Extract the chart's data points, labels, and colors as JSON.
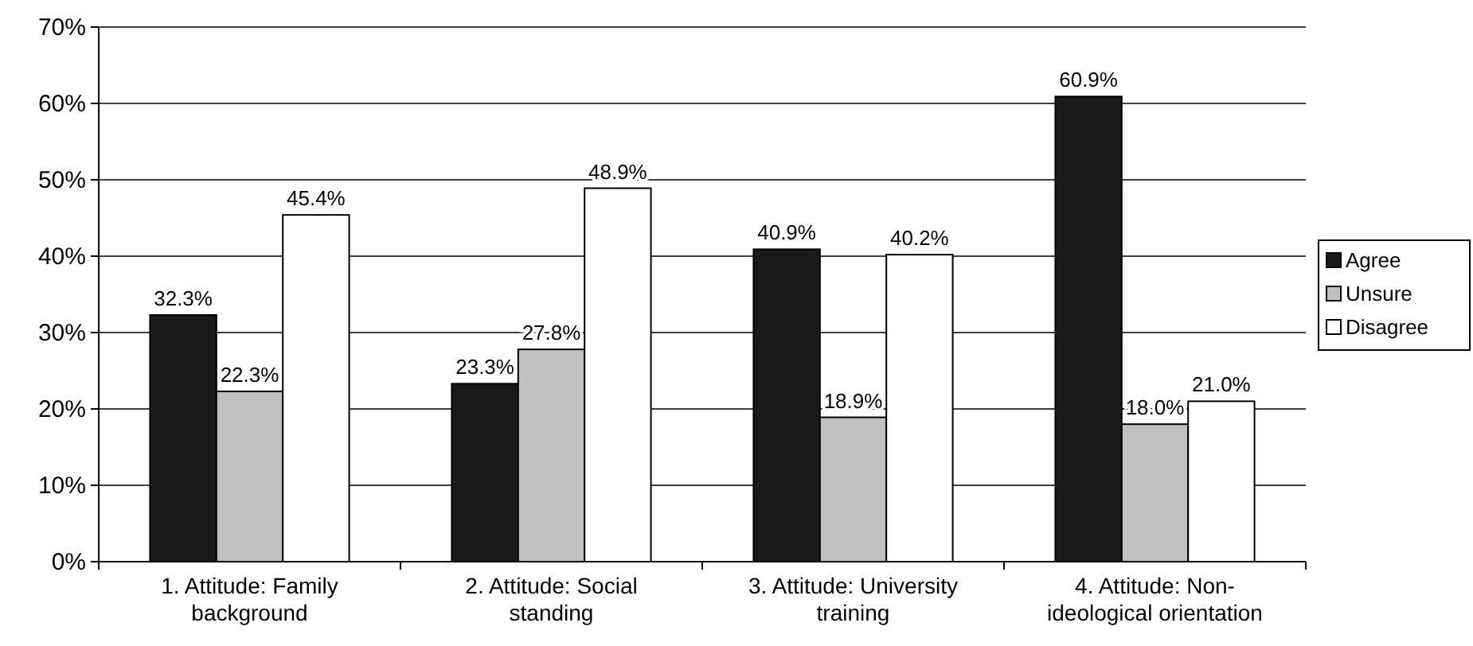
{
  "chart_data": {
    "type": "bar",
    "categories": [
      "1. Attitude: Family background",
      "2. Attitude: Social standing",
      "3. Attitude: University training",
      "4. Attitude: Non-ideological orientation"
    ],
    "series": [
      {
        "name": "Agree",
        "color": "#1a1a1a",
        "values": [
          32.3,
          23.3,
          40.9,
          60.9
        ],
        "value_labels": [
          "32.3%",
          "23.3%",
          "40.9%",
          "60.9%"
        ]
      },
      {
        "name": "Unsure",
        "color": "#c0c0c0",
        "values": [
          22.3,
          27.8,
          18.9,
          18.0
        ],
        "value_labels": [
          "22.3%",
          "27.8%",
          "18.9%",
          "18.0%"
        ]
      },
      {
        "name": "Disagree",
        "color": "#ffffff",
        "values": [
          45.4,
          48.9,
          40.2,
          21.0
        ],
        "value_labels": [
          "45.4%",
          "48.9%",
          "40.2%",
          "21.0%"
        ]
      }
    ],
    "ylim": [
      0,
      70
    ],
    "yticks": [
      {
        "value": 0,
        "label": "0%"
      },
      {
        "value": 10,
        "label": "10%"
      },
      {
        "value": 20,
        "label": "20%"
      },
      {
        "value": 30,
        "label": "30%"
      },
      {
        "value": 40,
        "label": "40%"
      },
      {
        "value": 50,
        "label": "50%"
      },
      {
        "value": 60,
        "label": "60%"
      },
      {
        "value": 70,
        "label": "70%"
      }
    ],
    "grid": "y",
    "legend": "right"
  }
}
